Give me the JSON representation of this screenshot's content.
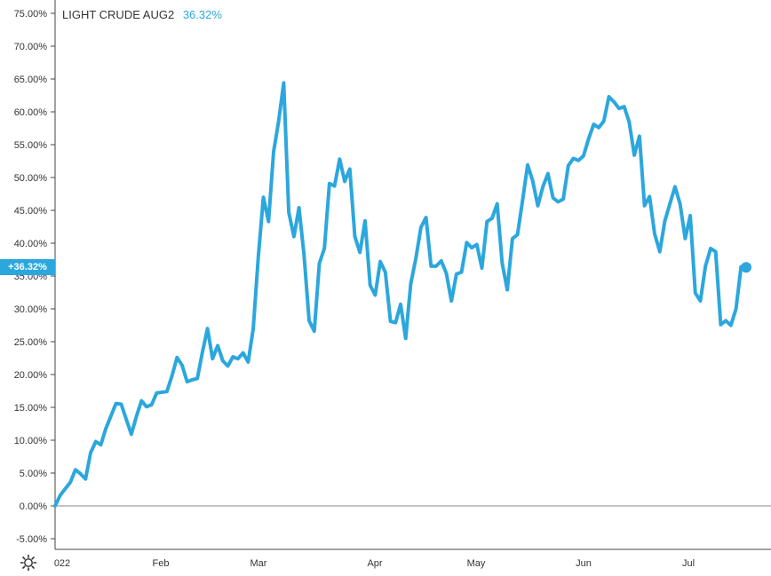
{
  "header": {
    "symbol": "LIGHT CRUDE AUG2",
    "change": "36.32%"
  },
  "last_value_badge": "+36.32%",
  "colors": {
    "series": "#2ca7dd",
    "zero_line": "#888888",
    "axis_line": "#444444",
    "text": "#333333"
  },
  "settings_icon": "gear-icon",
  "chart_data": {
    "type": "line",
    "title": "LIGHT CRUDE AUG2",
    "ylim": [
      -7,
      75
    ],
    "grid": false,
    "yticks": [
      "75.00%",
      "70.00%",
      "65.00%",
      "60.00%",
      "55.00%",
      "50.00%",
      "45.00%",
      "40.00%",
      "35.00%",
      "30.00%",
      "25.00%",
      "20.00%",
      "15.00%",
      "10.00%",
      "5.00%",
      "0.00%",
      "-5.00%"
    ],
    "ytick_values": [
      75,
      70,
      65,
      60,
      55,
      50,
      45,
      40,
      35,
      30,
      25,
      20,
      15,
      10,
      5,
      0,
      -5
    ],
    "xticks": [
      "022",
      "Feb",
      "Mar",
      "Apr",
      "May",
      "Jun",
      "Jul"
    ],
    "xtick_indices": [
      0,
      20,
      40,
      60,
      80,
      100,
      120
    ],
    "series": [
      {
        "values": [
          0,
          1.6,
          2.6,
          3.6,
          5.5,
          4.9,
          4.1,
          8.1,
          9.8,
          9.3,
          11.8,
          13.7,
          15.6,
          15.5,
          13.2,
          10.9,
          13.6,
          16.0,
          15.1,
          15.4,
          17.2,
          17.3,
          17.4,
          19.8,
          22.6,
          21.4,
          18.9,
          19.2,
          19.4,
          23.4,
          27.0,
          22.4,
          24.4,
          22.1,
          21.3,
          22.7,
          22.4,
          23.3,
          21.9,
          27.0,
          37.9,
          47.0,
          43.3,
          53.9,
          58.6,
          64.4,
          44.7,
          41.0,
          45.4,
          38.2,
          28.2,
          26.6,
          36.9,
          39.2,
          49.1,
          48.7,
          52.8,
          49.4,
          51.3,
          41.0,
          38.6,
          43.4,
          33.6,
          32.1,
          37.2,
          35.6,
          28.1,
          27.9,
          30.7,
          25.5,
          33.8,
          37.7,
          42.4,
          43.9,
          36.5,
          36.5,
          37.3,
          35.4,
          31.2,
          35.3,
          35.6,
          40.1,
          39.3,
          39.8,
          36.2,
          43.3,
          43.8,
          46.0,
          36.9,
          32.9,
          40.7,
          41.3,
          46.5,
          51.9,
          49.5,
          45.7,
          48.6,
          50.6,
          46.9,
          46.3,
          46.7,
          51.8,
          52.9,
          52.6,
          53.3,
          55.9,
          58.1,
          57.6,
          58.6,
          62.3,
          61.5,
          60.5,
          60.8,
          58.4,
          53.4,
          56.3,
          45.7,
          47.1,
          41.4,
          38.7,
          43.4,
          46.0,
          48.6,
          46.0,
          40.7,
          44.2,
          32.4,
          31.2,
          36.5,
          39.2,
          38.7,
          27.6,
          28.2,
          27.5,
          30.0,
          36.4,
          36.32
        ]
      }
    ]
  }
}
